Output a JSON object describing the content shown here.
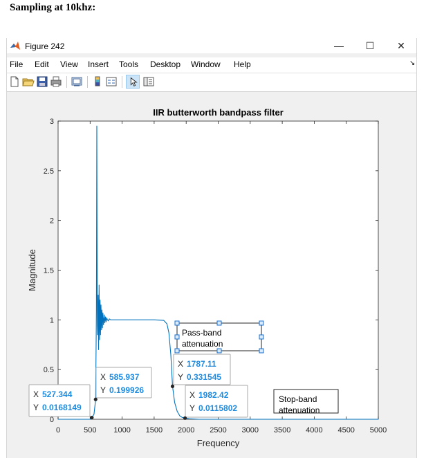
{
  "doc_heading": "Sampling at 10khz:",
  "window": {
    "title": "Figure 242",
    "controls": {
      "minimize": "—",
      "maximize": "☐",
      "close": "✕"
    }
  },
  "menu": [
    "File",
    "Edit",
    "View",
    "Insert",
    "Tools",
    "Desktop",
    "Window",
    "Help"
  ],
  "toolbar": [
    "new-figure-icon",
    "open-folder-icon",
    "save-icon",
    "print-icon",
    "link-plot-icon",
    "colorbar-icon",
    "legend-icon",
    "edit-plot-arrow-icon",
    "property-inspector-icon"
  ],
  "chart_data": {
    "type": "line",
    "title": "IIR butterworth bandpass filter",
    "xlabel": "Frequency",
    "ylabel": "Magnitude",
    "xlim": [
      0,
      5000
    ],
    "ylim": [
      0,
      3
    ],
    "xticks": [
      "0",
      "500",
      "1000",
      "1500",
      "2000",
      "2500",
      "3000",
      "3500",
      "4000",
      "4500",
      "5000"
    ],
    "yticks": [
      "0",
      "0.5",
      "1",
      "1.5",
      "2",
      "2.5",
      "3"
    ],
    "series": [
      {
        "color": "#0072bd",
        "x": [
          0,
          500,
          527.344,
          560,
          585.937,
          598,
          605,
          610,
          615,
          625,
          632,
          640,
          648,
          655,
          662,
          670,
          678,
          685,
          692,
          700,
          710,
          720,
          730,
          740,
          750,
          760,
          770,
          785,
          800,
          820,
          850,
          900,
          1000,
          1200,
          1500,
          1650,
          1700,
          1730,
          1760,
          1787.11,
          1820,
          1860,
          1900,
          1940,
          1982.42,
          2050,
          2200,
          3000,
          4000,
          5000
        ],
        "y": [
          0,
          0,
          0.0168,
          0.05,
          0.1999,
          1.1,
          2.95,
          1.4,
          0.85,
          1.25,
          0.7,
          1.35,
          0.8,
          1.2,
          0.85,
          1.15,
          0.9,
          1.1,
          0.92,
          1.07,
          0.95,
          1.05,
          0.97,
          1.03,
          0.98,
          1.02,
          1.0,
          0.99,
          1.01,
          1.0,
          1.0,
          1.0,
          1.0,
          1.0,
          1.0,
          0.995,
          0.96,
          0.87,
          0.65,
          0.3315,
          0.17,
          0.08,
          0.035,
          0.018,
          0.0116,
          0.005,
          0.0,
          0.0,
          0.0,
          0.0
        ]
      }
    ],
    "datatips": [
      {
        "x_label": "X",
        "x_value": "527.344",
        "y_label": "Y",
        "y_value": "0.0168149",
        "x": 527.344,
        "y": 0.0168149
      },
      {
        "x_label": "X",
        "x_value": "585.937",
        "y_label": "Y",
        "y_value": "0.199926",
        "x": 585.937,
        "y": 0.199926
      },
      {
        "x_label": "X",
        "x_value": "1787.11",
        "y_label": "Y",
        "y_value": "0.331545",
        "x": 1787.11,
        "y": 0.331545
      },
      {
        "x_label": "X",
        "x_value": "1982.42",
        "y_label": "Y",
        "y_value": "0.0115802",
        "x": 1982.42,
        "y": 0.0115802
      }
    ],
    "annotations": [
      {
        "lines": [
          "Pass-band",
          "attenuation"
        ],
        "selected": true
      },
      {
        "lines": [
          "Stop-band",
          "attenuation"
        ],
        "selected": false
      }
    ],
    "grid": false
  }
}
